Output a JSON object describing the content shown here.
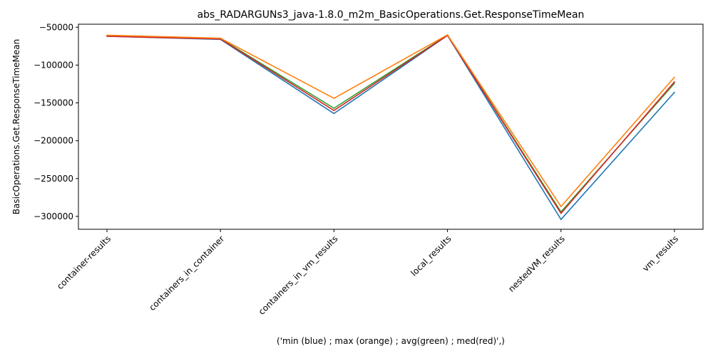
{
  "chart_data": {
    "type": "line",
    "title": "abs_RADARGUNs3_java-1.8.0_m2m_BasicOperations.Get.ResponseTimeMean",
    "xlabel": "('min (blue) ; max (orange) ; avg(green) ; med(red)',)",
    "ylabel": "BasicOperations.Get.ResponseTimeMean",
    "categories": [
      "container-results",
      "containers_in_container",
      "containers_in_vm_results",
      "local_results",
      "nestedVM_results",
      "vm_results"
    ],
    "ylim": [
      -317000,
      -46000
    ],
    "yticks": [
      -50000,
      -100000,
      -150000,
      -200000,
      -250000,
      -300000
    ],
    "ytick_labels": [
      "−50000",
      "−100000",
      "−150000",
      "−200000",
      "−250000",
      "−300000"
    ],
    "grid": false,
    "series": [
      {
        "color": "#1f77b4",
        "values": [
          -62000,
          -66000,
          -164000,
          -61000,
          -304000,
          -136000
        ]
      },
      {
        "color": "#2ca02c",
        "values": [
          -61000,
          -65000,
          -157000,
          -60500,
          -294000,
          -124000
        ]
      },
      {
        "color": "#d62728",
        "values": [
          -62000,
          -65500,
          -160000,
          -60800,
          -296000,
          -122000
        ]
      },
      {
        "color": "#ff7f0e",
        "values": [
          -60500,
          -64500,
          -144000,
          -60000,
          -287000,
          -116000
        ]
      }
    ]
  }
}
